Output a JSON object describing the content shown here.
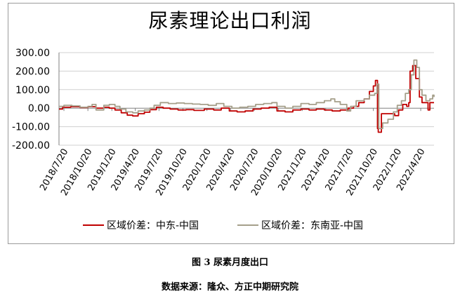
{
  "figure_caption": "图 3  尿素月度出口",
  "source_caption": "数据来源：隆众、方正中期研究院",
  "colors": {
    "mideast": "#c00000",
    "sea": "#a59f8a",
    "grid": "#d0d0d0",
    "axis": "#808080"
  },
  "chart_data": {
    "type": "line",
    "title": "尿素理论出口利润",
    "xlabel": "",
    "ylabel": "",
    "ylim": [
      -200,
      300
    ],
    "y_ticks": [
      "300.00",
      "200.00",
      "100.00",
      "0.00",
      "-100.00",
      "-200.00"
    ],
    "y_tick_values": [
      300,
      200,
      100,
      0,
      -100,
      -200
    ],
    "x_range": [
      "2018-07-01",
      "2022-06-10"
    ],
    "x_ticks": [
      "2018/7/20",
      "2018/10/20",
      "2019/1/20",
      "2019/4/20",
      "2019/7/20",
      "2019/10/20",
      "2020/1/20",
      "2020/4/20",
      "2020/7/20",
      "2020/10/20",
      "2021/1/20",
      "2021/4/20",
      "2021/7/20",
      "2021/10/20",
      "2022/1/20",
      "2022/4/20"
    ],
    "grid": true,
    "legend_position": "bottom",
    "series": [
      {
        "name": "区域价差：中东-中国",
        "color": "#c00000",
        "points": [
          [
            "2018-07-01",
            -5
          ],
          [
            "2018-07-15",
            5
          ],
          [
            "2018-08-15",
            8
          ],
          [
            "2018-09-20",
            3
          ],
          [
            "2018-10-20",
            8
          ],
          [
            "2018-11-20",
            0
          ],
          [
            "2018-12-20",
            5
          ],
          [
            "2019-01-10",
            0
          ],
          [
            "2019-02-01",
            -10
          ],
          [
            "2019-02-25",
            -25
          ],
          [
            "2019-03-20",
            -38
          ],
          [
            "2019-04-10",
            -42
          ],
          [
            "2019-05-01",
            -30
          ],
          [
            "2019-05-25",
            -22
          ],
          [
            "2019-06-15",
            -8
          ],
          [
            "2019-07-10",
            5
          ],
          [
            "2019-08-05",
            0
          ],
          [
            "2019-09-01",
            -5
          ],
          [
            "2019-10-01",
            -10
          ],
          [
            "2019-11-01",
            -8
          ],
          [
            "2019-12-01",
            -12
          ],
          [
            "2020-01-10",
            -5
          ],
          [
            "2020-02-15",
            -10
          ],
          [
            "2020-03-15",
            0
          ],
          [
            "2020-04-15",
            -15
          ],
          [
            "2020-05-15",
            -20
          ],
          [
            "2020-06-15",
            -15
          ],
          [
            "2020-07-15",
            -5
          ],
          [
            "2020-08-15",
            0
          ],
          [
            "2020-09-15",
            5
          ],
          [
            "2020-10-15",
            -15
          ],
          [
            "2020-11-15",
            -20
          ],
          [
            "2020-12-15",
            -10
          ],
          [
            "2021-01-15",
            -5
          ],
          [
            "2021-02-15",
            -10
          ],
          [
            "2021-03-15",
            -5
          ],
          [
            "2021-04-15",
            -10
          ],
          [
            "2021-05-15",
            -15
          ],
          [
            "2021-06-15",
            -10
          ],
          [
            "2021-07-15",
            0
          ],
          [
            "2021-08-05",
            10
          ],
          [
            "2021-08-25",
            30
          ],
          [
            "2021-09-15",
            50
          ],
          [
            "2021-10-05",
            90
          ],
          [
            "2021-10-20",
            120
          ],
          [
            "2021-10-28",
            150
          ],
          [
            "2021-11-03",
            150
          ],
          [
            "2021-11-05",
            -110
          ],
          [
            "2021-11-08",
            -130
          ],
          [
            "2021-11-20",
            -30
          ],
          [
            "2021-12-20",
            -30
          ],
          [
            "2022-01-10",
            -40
          ],
          [
            "2022-01-25",
            -10
          ],
          [
            "2022-02-10",
            20
          ],
          [
            "2022-02-25",
            10
          ],
          [
            "2022-03-05",
            30
          ],
          [
            "2022-03-10",
            200
          ],
          [
            "2022-03-20",
            230
          ],
          [
            "2022-04-01",
            160
          ],
          [
            "2022-04-15",
            60
          ],
          [
            "2022-04-25",
            30
          ],
          [
            "2022-05-10",
            30
          ],
          [
            "2022-05-18",
            -10
          ],
          [
            "2022-05-25",
            30
          ],
          [
            "2022-06-10",
            30
          ]
        ]
      },
      {
        "name": "区域价差：东南亚-中国",
        "color": "#a59f8a",
        "points": [
          [
            "2018-07-01",
            10
          ],
          [
            "2018-07-20",
            15
          ],
          [
            "2018-08-20",
            12
          ],
          [
            "2018-09-20",
            5
          ],
          [
            "2018-10-20",
            10
          ],
          [
            "2018-11-05",
            20
          ],
          [
            "2018-11-20",
            -10
          ],
          [
            "2018-12-20",
            15
          ],
          [
            "2019-01-10",
            20
          ],
          [
            "2019-02-01",
            10
          ],
          [
            "2019-02-20",
            -5
          ],
          [
            "2019-03-15",
            -20
          ],
          [
            "2019-04-10",
            -25
          ],
          [
            "2019-05-01",
            -15
          ],
          [
            "2019-05-25",
            -10
          ],
          [
            "2019-06-15",
            0
          ],
          [
            "2019-07-01",
            15
          ],
          [
            "2019-07-25",
            30
          ],
          [
            "2019-08-25",
            25
          ],
          [
            "2019-09-25",
            28
          ],
          [
            "2019-10-25",
            25
          ],
          [
            "2019-11-25",
            22
          ],
          [
            "2019-12-25",
            20
          ],
          [
            "2020-01-25",
            15
          ],
          [
            "2020-02-25",
            25
          ],
          [
            "2020-03-25",
            10
          ],
          [
            "2020-04-25",
            0
          ],
          [
            "2020-05-25",
            5
          ],
          [
            "2020-06-25",
            10
          ],
          [
            "2020-07-25",
            20
          ],
          [
            "2020-08-25",
            25
          ],
          [
            "2020-09-25",
            30
          ],
          [
            "2020-10-15",
            10
          ],
          [
            "2020-11-15",
            0
          ],
          [
            "2020-12-15",
            10
          ],
          [
            "2021-01-15",
            25
          ],
          [
            "2021-02-15",
            20
          ],
          [
            "2021-03-15",
            30
          ],
          [
            "2021-04-15",
            40
          ],
          [
            "2021-05-10",
            50
          ],
          [
            "2021-05-25",
            35
          ],
          [
            "2021-06-15",
            20
          ],
          [
            "2021-07-10",
            -15
          ],
          [
            "2021-07-25",
            10
          ],
          [
            "2021-08-15",
            40
          ],
          [
            "2021-09-15",
            50
          ],
          [
            "2021-10-05",
            70
          ],
          [
            "2021-10-25",
            80
          ],
          [
            "2021-11-03",
            130
          ],
          [
            "2021-11-10",
            -110
          ],
          [
            "2021-11-25",
            -80
          ],
          [
            "2021-12-15",
            -60
          ],
          [
            "2022-01-05",
            -20
          ],
          [
            "2022-01-20",
            15
          ],
          [
            "2022-02-05",
            40
          ],
          [
            "2022-02-20",
            80
          ],
          [
            "2022-03-05",
            100
          ],
          [
            "2022-03-15",
            180
          ],
          [
            "2022-03-25",
            260
          ],
          [
            "2022-04-05",
            220
          ],
          [
            "2022-04-15",
            100
          ],
          [
            "2022-04-25",
            70
          ],
          [
            "2022-05-10",
            40
          ],
          [
            "2022-05-25",
            50
          ],
          [
            "2022-06-05",
            70
          ],
          [
            "2022-06-10",
            60
          ]
        ]
      }
    ]
  }
}
